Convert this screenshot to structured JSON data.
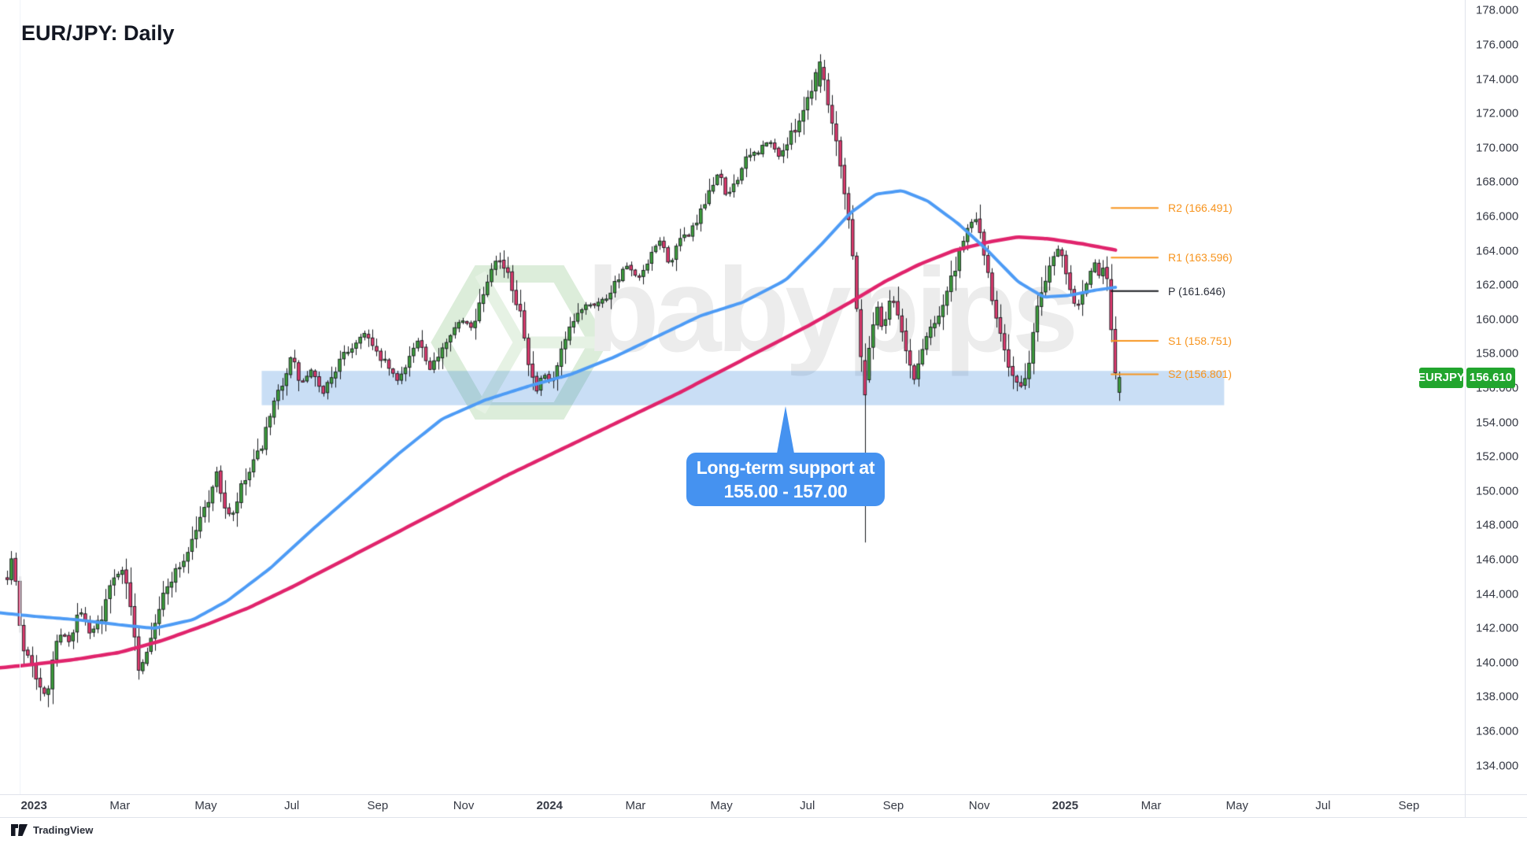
{
  "app": {
    "title": "EUR/JPY: Daily",
    "provider": "TradingView",
    "watermark": "babypips"
  },
  "symbol_badge": {
    "symbol": "EURJPY",
    "price": "156.610"
  },
  "callout": {
    "line1": "Long-term support at",
    "line2": "155.00 - 157.00"
  },
  "pivot_levels": [
    {
      "role": "R2",
      "label": "R2 (166.491)",
      "value": 166.491,
      "color": "#F7941E",
      "line_color": "#F7941E"
    },
    {
      "role": "R1",
      "label": "R1 (163.596)",
      "value": 163.596,
      "color": "#F7941E",
      "line_color": "#F7941E"
    },
    {
      "role": "P",
      "label": "P (161.646)",
      "value": 161.646,
      "color": "#2A2E39",
      "line_color": "#16181d"
    },
    {
      "role": "S1",
      "label": "S1 (158.751)",
      "value": 158.751,
      "color": "#F7941E",
      "line_color": "#F7941E"
    },
    {
      "role": "S2",
      "label": "S2 (156.801)",
      "value": 156.801,
      "color": "#F7941E",
      "line_color": "#F7941E"
    }
  ],
  "support_zone": {
    "price_top": 157.0,
    "price_bottom": 155.0,
    "m_start": 5.3,
    "m_end": 27.7,
    "fill_rgba": [
      30,
      118,
      214,
      0.24
    ]
  },
  "axes": {
    "price_ticks": [
      178,
      176,
      174,
      172,
      170,
      168,
      166,
      164,
      162,
      160,
      158,
      156,
      154,
      152,
      150,
      148,
      146,
      144,
      142,
      140,
      138,
      136,
      134
    ],
    "price_tick_format_decimals": 3,
    "time_ticks": [
      {
        "m": 0,
        "label": "2023",
        "bold": true
      },
      {
        "m": 2,
        "label": "Mar"
      },
      {
        "m": 4,
        "label": "May"
      },
      {
        "m": 6,
        "label": "Jul"
      },
      {
        "m": 8,
        "label": "Sep"
      },
      {
        "m": 10,
        "label": "Nov"
      },
      {
        "m": 12,
        "label": "2024",
        "bold": true
      },
      {
        "m": 14,
        "label": "Mar"
      },
      {
        "m": 16,
        "label": "May"
      },
      {
        "m": 18,
        "label": "Jul"
      },
      {
        "m": 20,
        "label": "Sep"
      },
      {
        "m": 22,
        "label": "Nov"
      },
      {
        "m": 24,
        "label": "2025",
        "bold": true
      },
      {
        "m": 26,
        "label": "Mar"
      },
      {
        "m": 28,
        "label": "May"
      },
      {
        "m": 30,
        "label": "Jul"
      },
      {
        "m": 32,
        "label": "Sep"
      }
    ]
  },
  "chart_data": {
    "type": "candlestick",
    "symbol": "EUR/JPY",
    "timeframe": "Daily",
    "title": "EUR/JPY: Daily",
    "grid": false,
    "y_axis": {
      "price_at_top": 178.61,
      "price_at_bottom": 132.33,
      "tick_step": 2
    },
    "x_axis": {
      "unit": "months_since_2023_01",
      "m_at_left": -0.79,
      "m_at_right": 33.3
    },
    "data_start_m": -0.62,
    "data_end_m": 25.26,
    "candle_count": 272,
    "last_price": 156.61,
    "close_path_anchors": [
      [
        -0.62,
        145.0
      ],
      [
        -0.5,
        146.3
      ],
      [
        -0.42,
        144.5
      ],
      [
        -0.3,
        141.0
      ],
      [
        -0.15,
        140.6
      ],
      [
        0.0,
        139.8
      ],
      [
        0.15,
        138.4
      ],
      [
        0.3,
        137.9
      ],
      [
        0.45,
        140.6
      ],
      [
        0.65,
        141.9
      ],
      [
        0.85,
        141.0
      ],
      [
        1.05,
        143.2
      ],
      [
        1.3,
        141.6
      ],
      [
        1.55,
        142.6
      ],
      [
        1.8,
        144.6
      ],
      [
        2.05,
        145.6
      ],
      [
        2.3,
        142.5
      ],
      [
        2.45,
        139.5
      ],
      [
        2.6,
        140.6
      ],
      [
        2.8,
        142.4
      ],
      [
        3.0,
        143.8
      ],
      [
        3.25,
        145.2
      ],
      [
        3.5,
        146.0
      ],
      [
        3.75,
        147.6
      ],
      [
        4.0,
        149.2
      ],
      [
        4.25,
        151.0
      ],
      [
        4.45,
        149.0
      ],
      [
        4.6,
        148.3
      ],
      [
        4.8,
        150.0
      ],
      [
        5.0,
        151.0
      ],
      [
        5.25,
        152.3
      ],
      [
        5.5,
        154.2
      ],
      [
        5.75,
        156.2
      ],
      [
        6.0,
        157.9
      ],
      [
        6.2,
        156.2
      ],
      [
        6.45,
        157.0
      ],
      [
        6.7,
        155.6
      ],
      [
        6.95,
        156.8
      ],
      [
        7.2,
        157.9
      ],
      [
        7.45,
        158.5
      ],
      [
        7.7,
        159.3
      ],
      [
        7.95,
        158.0
      ],
      [
        8.2,
        157.4
      ],
      [
        8.45,
        156.4
      ],
      [
        8.7,
        157.7
      ],
      [
        8.95,
        158.8
      ],
      [
        9.2,
        156.9
      ],
      [
        9.45,
        158.2
      ],
      [
        9.7,
        159.3
      ],
      [
        9.95,
        159.9
      ],
      [
        10.2,
        159.6
      ],
      [
        10.45,
        161.6
      ],
      [
        10.7,
        163.6
      ],
      [
        10.9,
        163.3
      ],
      [
        11.1,
        162.0
      ],
      [
        11.35,
        160.3
      ],
      [
        11.55,
        157.0
      ],
      [
        11.68,
        155.7
      ],
      [
        11.85,
        156.8
      ],
      [
        12.05,
        156.2
      ],
      [
        12.3,
        158.2
      ],
      [
        12.55,
        159.8
      ],
      [
        12.8,
        160.9
      ],
      [
        13.05,
        160.9
      ],
      [
        13.3,
        161.2
      ],
      [
        13.55,
        162.3
      ],
      [
        13.8,
        163.1
      ],
      [
        14.05,
        162.3
      ],
      [
        14.3,
        163.2
      ],
      [
        14.55,
        164.7
      ],
      [
        14.8,
        163.2
      ],
      [
        15.05,
        164.6
      ],
      [
        15.3,
        165.2
      ],
      [
        15.55,
        166.3
      ],
      [
        15.8,
        167.8
      ],
      [
        15.95,
        168.8
      ],
      [
        16.1,
        167.0
      ],
      [
        16.35,
        168.2
      ],
      [
        16.6,
        169.4
      ],
      [
        16.85,
        169.8
      ],
      [
        17.1,
        170.4
      ],
      [
        17.35,
        169.5
      ],
      [
        17.6,
        170.6
      ],
      [
        17.85,
        171.9
      ],
      [
        18.05,
        173.2
      ],
      [
        18.2,
        174.4
      ],
      [
        18.32,
        175.0
      ],
      [
        18.45,
        172.8
      ],
      [
        18.6,
        171.5
      ],
      [
        18.78,
        169.0
      ],
      [
        18.95,
        166.0
      ],
      [
        19.1,
        162.5
      ],
      [
        19.22,
        158.5
      ],
      [
        19.32,
        156.0
      ],
      [
        19.45,
        158.8
      ],
      [
        19.6,
        160.9
      ],
      [
        19.75,
        159.3
      ],
      [
        19.9,
        161.2
      ],
      [
        20.05,
        161.0
      ],
      [
        20.2,
        159.2
      ],
      [
        20.35,
        157.5
      ],
      [
        20.5,
        156.4
      ],
      [
        20.65,
        158.2
      ],
      [
        20.8,
        159.2
      ],
      [
        20.95,
        159.9
      ],
      [
        21.1,
        160.5
      ],
      [
        21.3,
        162.0
      ],
      [
        21.5,
        163.4
      ],
      [
        21.7,
        164.9
      ],
      [
        21.85,
        166.0
      ],
      [
        22.0,
        165.3
      ],
      [
        22.15,
        163.3
      ],
      [
        22.3,
        160.9
      ],
      [
        22.45,
        159.8
      ],
      [
        22.6,
        158.3
      ],
      [
        22.75,
        156.8
      ],
      [
        22.9,
        156.1
      ],
      [
        23.05,
        156.0
      ],
      [
        23.2,
        158.4
      ],
      [
        23.35,
        160.6
      ],
      [
        23.5,
        162.2
      ],
      [
        23.65,
        163.3
      ],
      [
        23.8,
        164.2
      ],
      [
        23.95,
        163.6
      ],
      [
        24.1,
        162.2
      ],
      [
        24.25,
        160.6
      ],
      [
        24.4,
        161.6
      ],
      [
        24.55,
        162.6
      ],
      [
        24.7,
        163.3
      ],
      [
        24.82,
        162.2
      ],
      [
        24.95,
        163.4
      ],
      [
        25.02,
        161.0
      ],
      [
        25.08,
        159.0
      ],
      [
        25.14,
        157.6
      ],
      [
        25.2,
        156.2
      ],
      [
        25.26,
        156.6
      ]
    ],
    "ma_fast": {
      "name": "moving-average-blue",
      "color": "#4D9BF5",
      "width": 4,
      "anchors": [
        [
          -0.79,
          142.9
        ],
        [
          0,
          142.7
        ],
        [
          1,
          142.5
        ],
        [
          2,
          142.2
        ],
        [
          2.8,
          142.0
        ],
        [
          3.7,
          142.5
        ],
        [
          4.5,
          143.6
        ],
        [
          5.5,
          145.5
        ],
        [
          6.5,
          147.8
        ],
        [
          7.5,
          150.0
        ],
        [
          8.5,
          152.2
        ],
        [
          9.5,
          154.2
        ],
        [
          10.5,
          155.3
        ],
        [
          11.5,
          156.1
        ],
        [
          12.5,
          156.8
        ],
        [
          13.5,
          157.8
        ],
        [
          14.5,
          159.0
        ],
        [
          15.5,
          160.2
        ],
        [
          16.5,
          161.0
        ],
        [
          17.5,
          162.3
        ],
        [
          18.3,
          164.3
        ],
        [
          19.0,
          166.2
        ],
        [
          19.6,
          167.3
        ],
        [
          20.2,
          167.5
        ],
        [
          20.8,
          166.9
        ],
        [
          21.5,
          165.6
        ],
        [
          22.2,
          164.0
        ],
        [
          22.9,
          162.2
        ],
        [
          23.5,
          161.3
        ],
        [
          24.1,
          161.4
        ],
        [
          24.7,
          161.7
        ],
        [
          25.26,
          161.9
        ]
      ]
    },
    "ma_slow": {
      "name": "moving-average-pink",
      "color": "#E0246C",
      "width": 4.5,
      "anchors": [
        [
          -0.79,
          139.7
        ],
        [
          0,
          139.9
        ],
        [
          1,
          140.2
        ],
        [
          2,
          140.6
        ],
        [
          3,
          141.3
        ],
        [
          4,
          142.2
        ],
        [
          5,
          143.2
        ],
        [
          6,
          144.4
        ],
        [
          7,
          145.7
        ],
        [
          8,
          147.0
        ],
        [
          9,
          148.3
        ],
        [
          10,
          149.6
        ],
        [
          11,
          150.9
        ],
        [
          12,
          152.1
        ],
        [
          13,
          153.3
        ],
        [
          14,
          154.5
        ],
        [
          15,
          155.7
        ],
        [
          16,
          157.0
        ],
        [
          17,
          158.3
        ],
        [
          18,
          159.6
        ],
        [
          19,
          161.0
        ],
        [
          19.8,
          162.2
        ],
        [
          20.6,
          163.2
        ],
        [
          21.4,
          164.0
        ],
        [
          22.2,
          164.5
        ],
        [
          22.9,
          164.8
        ],
        [
          23.6,
          164.7
        ],
        [
          24.4,
          164.4
        ],
        [
          25.26,
          164.0
        ]
      ]
    },
    "specials": {
      "peak_m": 18.32,
      "peak_high": 175.45,
      "crash_m": 19.32,
      "crash_low": 147.0,
      "last_candle": {
        "open": 155.75,
        "close": 156.61,
        "high": 156.95,
        "low": 155.25
      }
    },
    "colors": {
      "up": "#3DA03C",
      "down": "#E13A6F",
      "wick": "#16181d",
      "border": "#16181d"
    }
  },
  "colors": {
    "accent_orange": "#F7941E",
    "pivot_p_text": "#2A2E39",
    "callout_bg": "#4592F0",
    "badge_bg": "#22A52E",
    "axis_text": "#363A45",
    "separator": "#E0E3EB",
    "watermark_text": "#ECECEC",
    "watermark_logo": "#DCEDDA"
  }
}
